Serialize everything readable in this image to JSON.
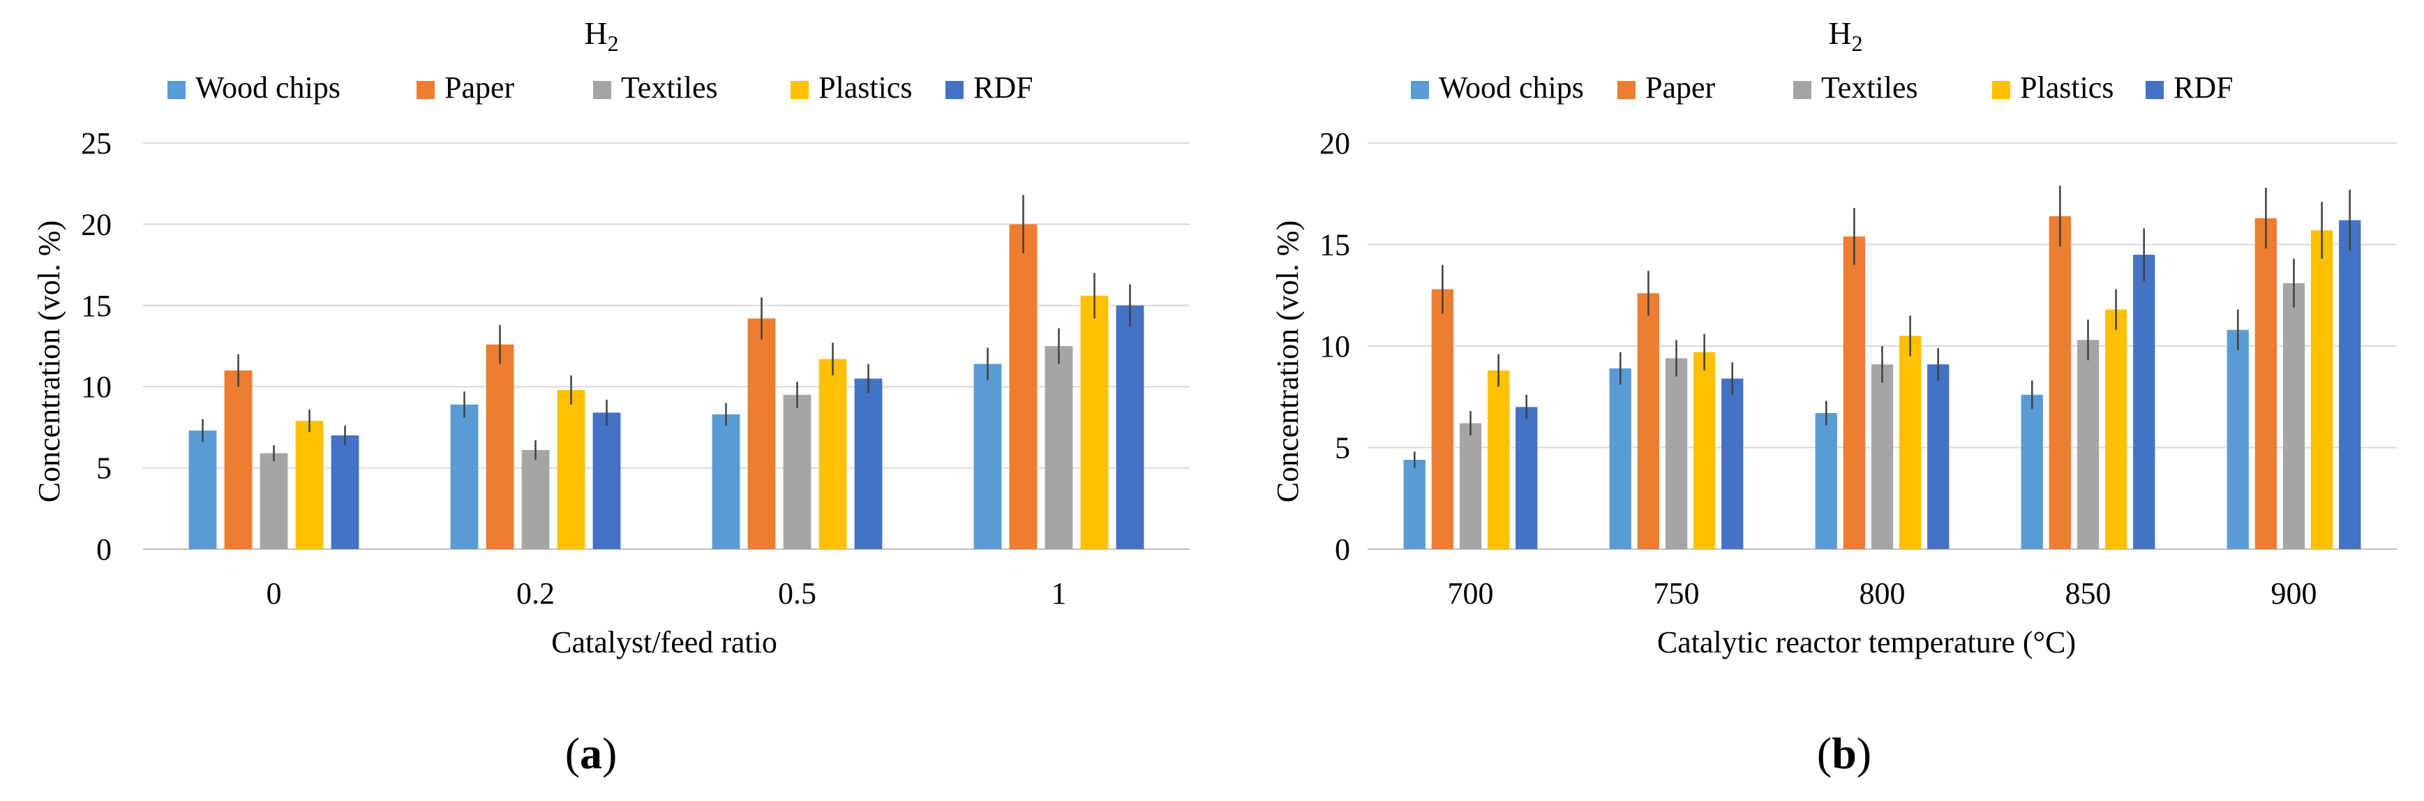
{
  "chart_data": [
    {
      "type": "bar",
      "panel_label": "a",
      "title_main": "H",
      "title_sub": "2",
      "xlabel": "Catalyst/feed ratio",
      "ylabel": "Concentration (vol. %)",
      "ylim": [
        0,
        25
      ],
      "yticks": [
        0,
        5,
        10,
        15,
        20,
        25
      ],
      "grid": true,
      "legend_position": "top",
      "categories": [
        "0",
        "0.2",
        "0.5",
        "1"
      ],
      "series": [
        {
          "name": "Wood chips",
          "color": "#5b9bd5",
          "values": [
            7.3,
            8.9,
            8.3,
            11.4
          ],
          "errors": [
            0.7,
            0.8,
            0.7,
            1.0
          ]
        },
        {
          "name": "Paper",
          "color": "#ed7d31",
          "values": [
            11.0,
            12.6,
            14.2,
            20.0
          ],
          "errors": [
            1.0,
            1.2,
            1.3,
            1.8
          ]
        },
        {
          "name": "Textiles",
          "color": "#a5a5a5",
          "values": [
            5.9,
            6.1,
            9.5,
            12.5
          ],
          "errors": [
            0.5,
            0.6,
            0.8,
            1.1
          ]
        },
        {
          "name": "Plastics",
          "color": "#ffc000",
          "values": [
            7.9,
            9.8,
            11.7,
            15.6
          ],
          "errors": [
            0.7,
            0.9,
            1.0,
            1.4
          ]
        },
        {
          "name": "RDF",
          "color": "#4472c4",
          "values": [
            7.0,
            8.4,
            10.5,
            15.0
          ],
          "errors": [
            0.6,
            0.8,
            0.9,
            1.3
          ]
        }
      ]
    },
    {
      "type": "bar",
      "panel_label": "b",
      "title_main": "H",
      "title_sub": "2",
      "xlabel": "Catalytic reactor temperature (°C)",
      "ylabel": "Concentration (vol. %)",
      "ylim": [
        0,
        20
      ],
      "yticks": [
        0,
        5,
        10,
        15,
        20
      ],
      "grid": true,
      "legend_position": "top",
      "categories": [
        "700",
        "750",
        "800",
        "850",
        "900"
      ],
      "series": [
        {
          "name": "Wood chips",
          "color": "#5b9bd5",
          "values": [
            4.4,
            8.9,
            6.7,
            7.6,
            10.8
          ],
          "errors": [
            0.4,
            0.8,
            0.6,
            0.7,
            1.0
          ]
        },
        {
          "name": "Paper",
          "color": "#ed7d31",
          "values": [
            12.8,
            12.6,
            15.4,
            16.4,
            16.3
          ],
          "errors": [
            1.2,
            1.1,
            1.4,
            1.5,
            1.5
          ]
        },
        {
          "name": "Textiles",
          "color": "#a5a5a5",
          "values": [
            6.2,
            9.4,
            9.1,
            10.3,
            13.1
          ],
          "errors": [
            0.6,
            0.9,
            0.9,
            1.0,
            1.2
          ]
        },
        {
          "name": "Plastics",
          "color": "#ffc000",
          "values": [
            8.8,
            9.7,
            10.5,
            11.8,
            15.7
          ],
          "errors": [
            0.8,
            0.9,
            1.0,
            1.0,
            1.4
          ]
        },
        {
          "name": "RDF",
          "color": "#4472c4",
          "values": [
            7.0,
            8.4,
            9.1,
            14.5,
            16.2
          ],
          "errors": [
            0.6,
            0.8,
            0.8,
            1.3,
            1.5
          ]
        }
      ]
    }
  ]
}
